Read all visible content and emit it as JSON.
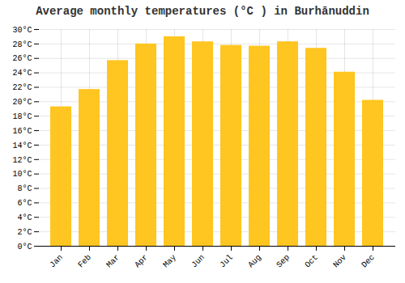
{
  "chart_data": {
    "type": "bar",
    "title": "Average monthly temperatures (°C ) in Burhānuddin",
    "categories": [
      "Jan",
      "Feb",
      "Mar",
      "Apr",
      "May",
      "Jun",
      "Jul",
      "Aug",
      "Sep",
      "Oct",
      "Nov",
      "Dec"
    ],
    "values": [
      19.3,
      21.7,
      25.7,
      28.0,
      29.0,
      28.3,
      27.8,
      27.7,
      28.3,
      27.4,
      24.1,
      20.2
    ],
    "color": "#FFC520",
    "ylim": [
      0,
      30
    ],
    "yticks": [
      {
        "value": 0,
        "label": "0°C"
      },
      {
        "value": 2,
        "label": "2°C"
      },
      {
        "value": 4,
        "label": "4°C"
      },
      {
        "value": 6,
        "label": "6°C"
      },
      {
        "value": 8,
        "label": "8°C"
      },
      {
        "value": 10,
        "label": "10°C"
      },
      {
        "value": 12,
        "label": "12°C"
      },
      {
        "value": 14,
        "label": "14°C"
      },
      {
        "value": 16,
        "label": "16°C"
      },
      {
        "value": 18,
        "label": "18°C"
      },
      {
        "value": 20,
        "label": "20°C"
      },
      {
        "value": 22,
        "label": "22°C"
      },
      {
        "value": 24,
        "label": "24°C"
      },
      {
        "value": 26,
        "label": "26°C"
      },
      {
        "value": 28,
        "label": "28°C"
      },
      {
        "value": 30,
        "label": "30°C"
      }
    ],
    "grid": true
  }
}
